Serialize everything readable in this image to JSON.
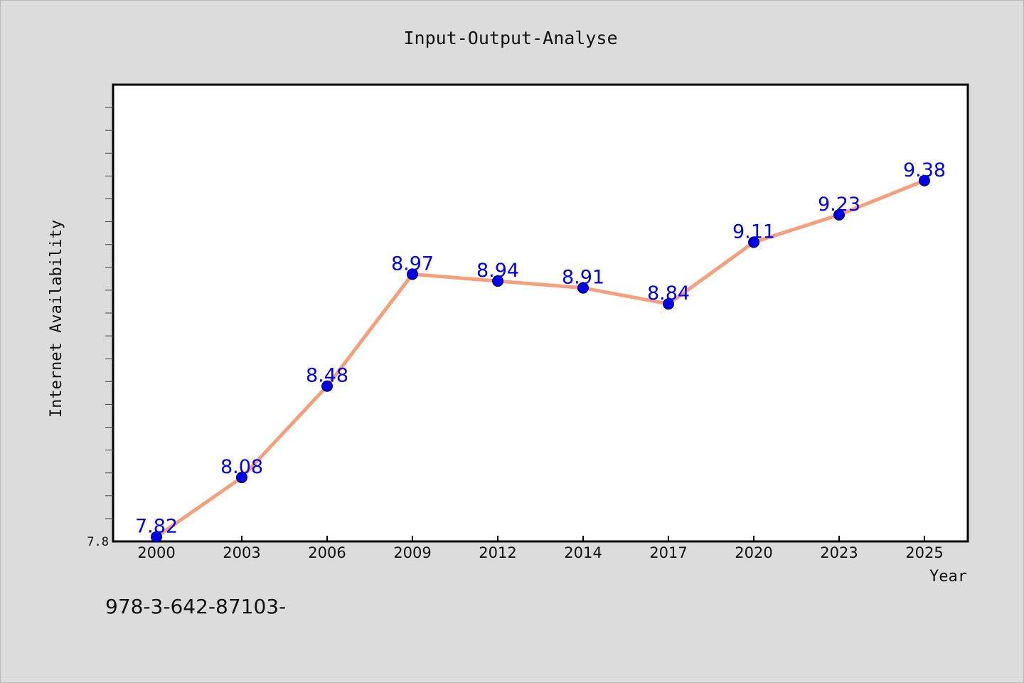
{
  "chart_data": {
    "type": "line",
    "title": "Input-Output-Analyse",
    "xlabel": "Year",
    "ylabel": "Internet Availability",
    "categories": [
      "2000",
      "2003",
      "2006",
      "2009",
      "2012",
      "2014",
      "2017",
      "2020",
      "2023",
      "2025"
    ],
    "series": [
      {
        "values": [
          7.82,
          8.08,
          8.48,
          8.97,
          8.94,
          8.91,
          8.84,
          9.11,
          9.23,
          9.38
        ],
        "labels": [
          "7.82",
          "8.08",
          "8.48",
          "8.97",
          "8.94",
          "8.91",
          "8.84",
          "9.11",
          "9.23",
          "9.38"
        ]
      }
    ],
    "ytick_labels": [
      "7.8"
    ],
    "ylim": [
      7.8,
      9.8
    ],
    "grid": false,
    "line_color": "#f4a07c",
    "marker_color": "#0000ee",
    "label_color": "#0000ee"
  },
  "footer_text": "978-3-642-87103-"
}
